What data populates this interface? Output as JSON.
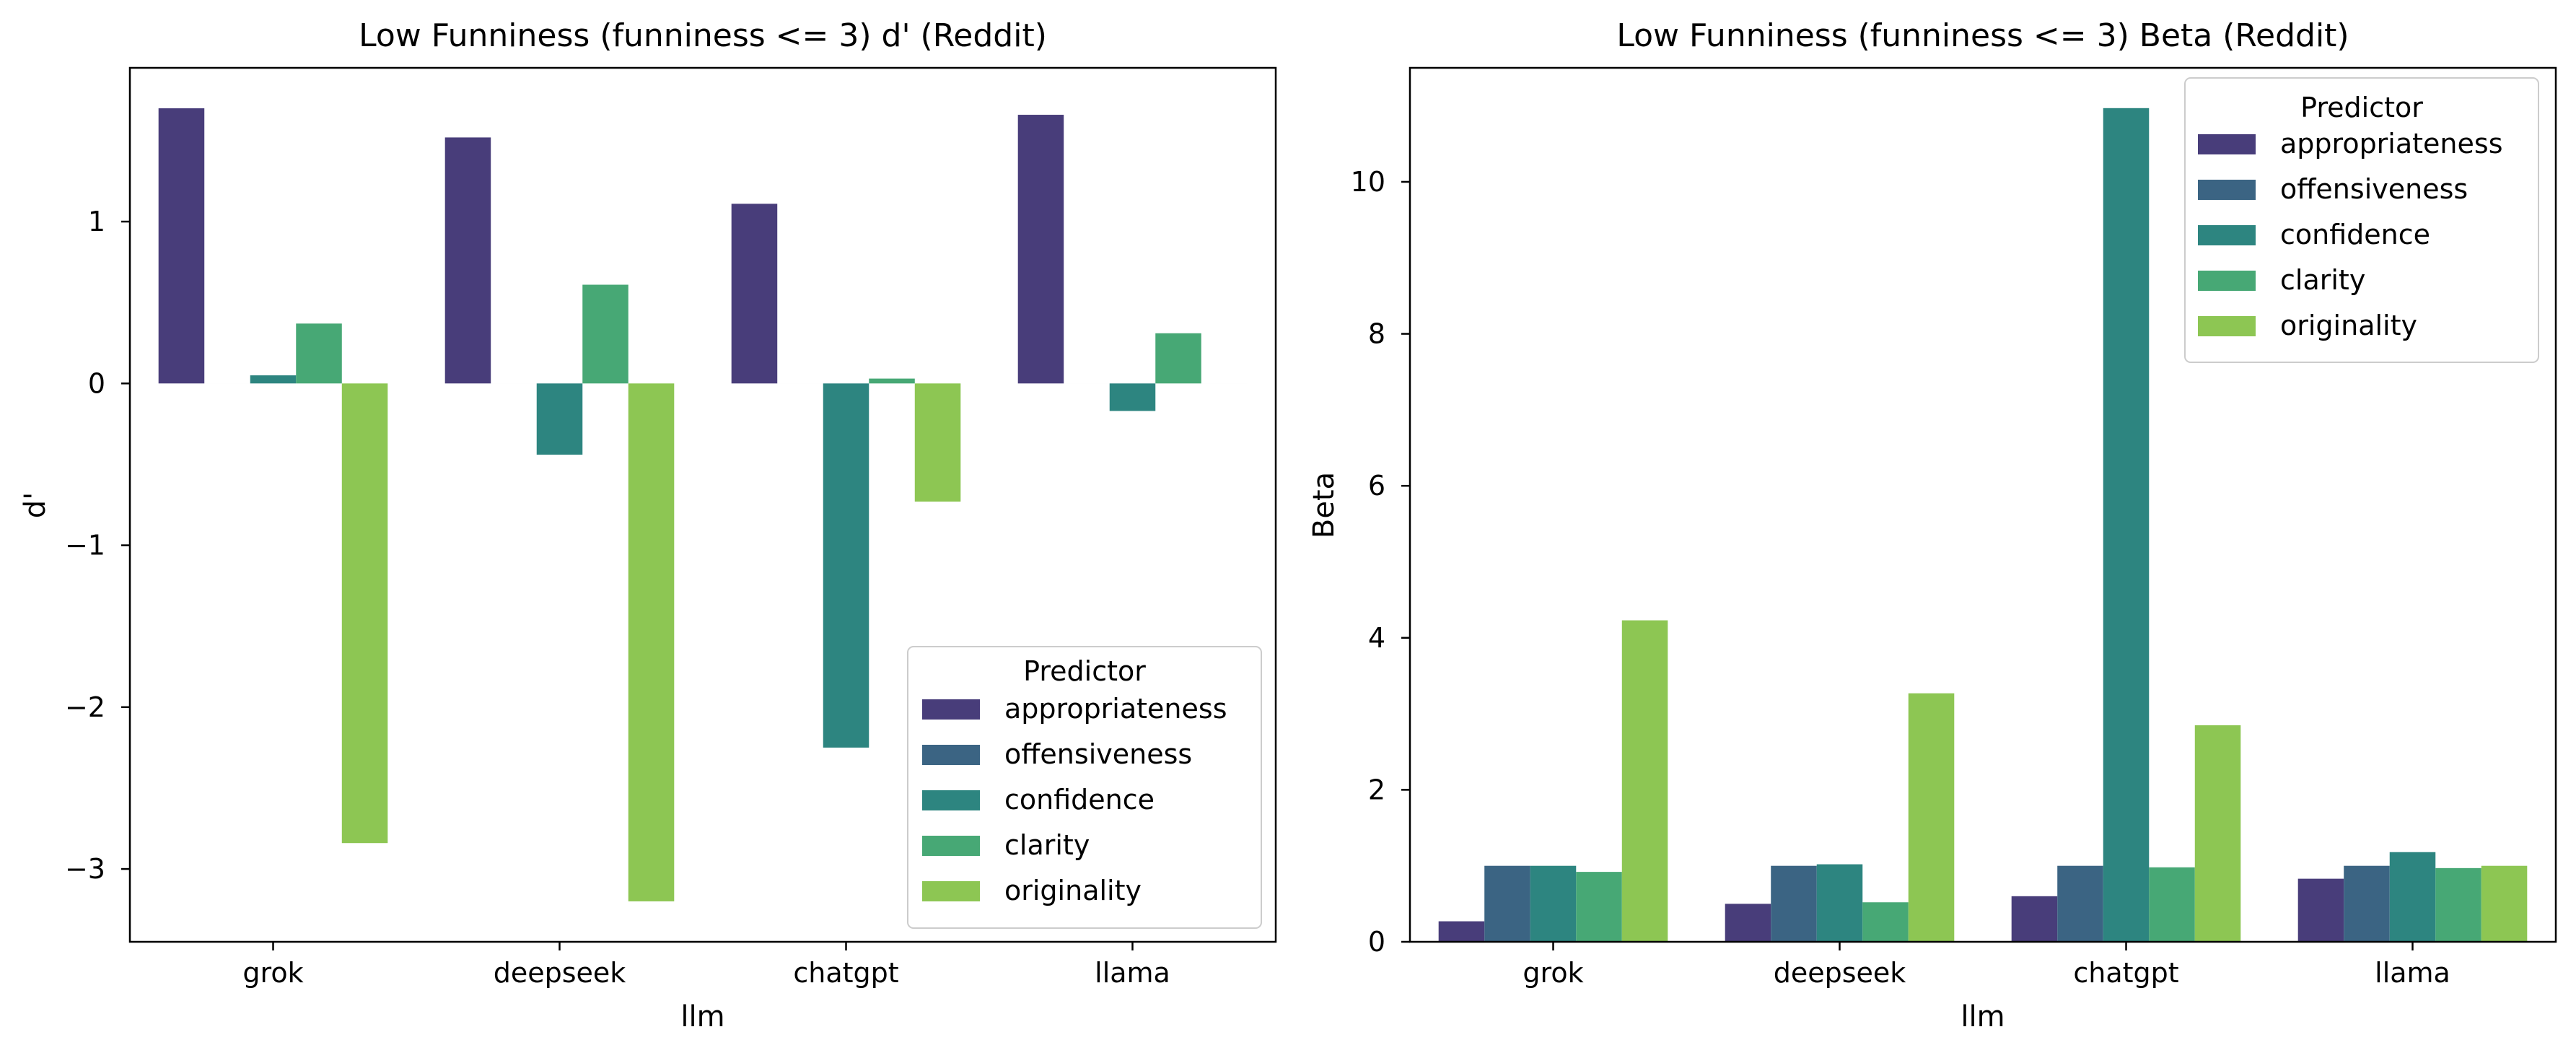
{
  "chart_data": [
    {
      "type": "bar",
      "title": "Low Funniness (funniness <= 3) d' (Reddit)",
      "xlabel": "llm",
      "ylabel": "d'",
      "categories": [
        "grok",
        "deepseek",
        "chatgpt",
        "llama"
      ],
      "ylim": [
        -3.45,
        1.95
      ],
      "yticks": [
        1,
        0,
        -1,
        -2,
        -3
      ],
      "ytick_labels": [
        "1",
        "0",
        "−1",
        "−2",
        "−3"
      ],
      "grid": false,
      "legend": {
        "title": "Predictor",
        "placement": "lower-right",
        "entries": [
          "appropriateness",
          "offensiveness",
          "confidence",
          "clarity",
          "originality"
        ]
      },
      "series": [
        {
          "name": "appropriateness",
          "color": "#483d7a",
          "values": [
            1.7,
            1.52,
            1.11,
            1.66
          ]
        },
        {
          "name": "offensiveness",
          "color": "#3b6483",
          "values": [
            0.0,
            0.0,
            0.0,
            0.0
          ]
        },
        {
          "name": "confidence",
          "color": "#2d8580",
          "values": [
            0.05,
            -0.44,
            -2.25,
            -0.17
          ]
        },
        {
          "name": "clarity",
          "color": "#47a875",
          "values": [
            0.37,
            0.61,
            0.03,
            0.31
          ]
        },
        {
          "name": "originality",
          "color": "#8dc653",
          "values": [
            -2.84,
            -3.2,
            -0.73,
            0.0
          ]
        }
      ]
    },
    {
      "type": "bar",
      "title": "Low Funniness (funniness <= 3) Beta (Reddit)",
      "xlabel": "llm",
      "ylabel": "Beta",
      "categories": [
        "grok",
        "deepseek",
        "chatgpt",
        "llama"
      ],
      "ylim": [
        0,
        11.5
      ],
      "yticks": [
        0,
        2,
        4,
        6,
        8,
        10
      ],
      "ytick_labels": [
        "0",
        "2",
        "4",
        "6",
        "8",
        "10"
      ],
      "grid": false,
      "legend": {
        "title": "Predictor",
        "placement": "upper-right",
        "entries": [
          "appropriateness",
          "offensiveness",
          "confidence",
          "clarity",
          "originality"
        ]
      },
      "series": [
        {
          "name": "appropriateness",
          "color": "#483d7a",
          "values": [
            0.27,
            0.5,
            0.6,
            0.83
          ]
        },
        {
          "name": "offensiveness",
          "color": "#3b6483",
          "values": [
            1.0,
            1.0,
            1.0,
            1.0
          ]
        },
        {
          "name": "confidence",
          "color": "#2d8580",
          "values": [
            1.0,
            1.02,
            10.97,
            1.18
          ]
        },
        {
          "name": "clarity",
          "color": "#47a875",
          "values": [
            0.92,
            0.52,
            0.98,
            0.97
          ]
        },
        {
          "name": "originality",
          "color": "#8dc653",
          "values": [
            4.23,
            3.27,
            2.85,
            1.0
          ]
        }
      ]
    }
  ]
}
